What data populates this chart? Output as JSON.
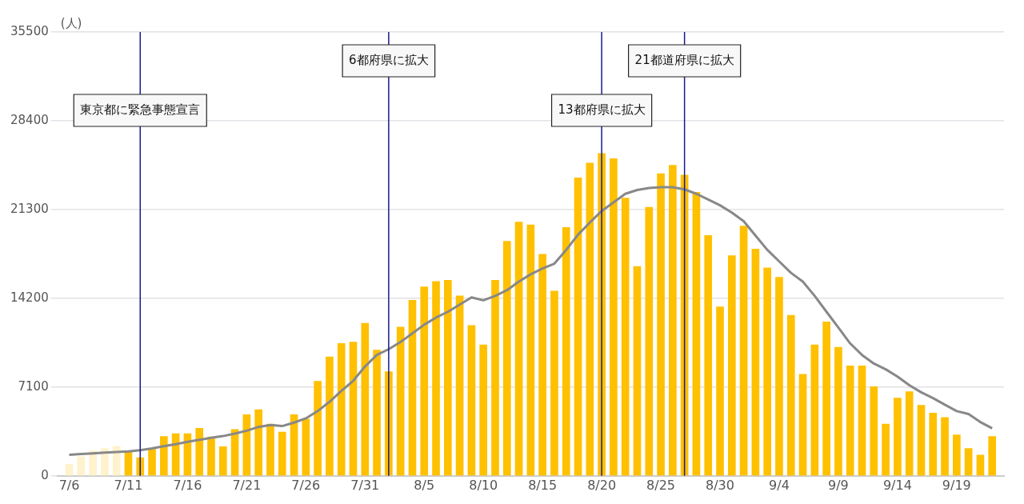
{
  "chart_data": {
    "type": "bar",
    "ylabel": "(人)",
    "x": [
      "--07-06",
      "--07-07",
      "--07-08",
      "--07-09",
      "--07-10",
      "--07-11",
      "--07-12",
      "--07-13",
      "--07-14",
      "--07-15",
      "--07-16",
      "--07-17",
      "--07-18",
      "--07-19",
      "--07-20",
      "--07-21",
      "--07-22",
      "--07-23",
      "--07-24",
      "--07-25",
      "--07-26",
      "--07-27",
      "--07-28",
      "--07-29",
      "--07-30",
      "--07-31",
      "--08-01",
      "--08-02",
      "--08-03",
      "--08-04",
      "--08-05",
      "--08-06",
      "--08-07",
      "--08-08",
      "--08-09",
      "--08-10",
      "--08-11",
      "--08-12",
      "--08-13",
      "--08-14",
      "--08-15",
      "--08-16",
      "--08-17",
      "--08-18",
      "--08-19",
      "--08-20",
      "--08-21",
      "--08-22",
      "--08-23",
      "--08-24",
      "--08-25",
      "--08-26",
      "--08-27",
      "--08-28",
      "--08-29",
      "--08-30",
      "--08-31",
      "--09-01",
      "--09-02",
      "--09-03",
      "--09-04",
      "--09-05",
      "--09-06",
      "--09-07",
      "--09-08",
      "--09-09",
      "--09-10",
      "--09-11",
      "--09-12",
      "--09-13",
      "--09-14",
      "--09-15",
      "--09-16",
      "--09-17",
      "--09-18",
      "--09-19",
      "--09-20",
      "--09-21",
      "--09-22"
    ],
    "series": [
      {
        "colors": [
          "#fff2cc",
          "#fff2cc",
          "#fff2cc",
          "#fff2cc",
          "#fff2cc",
          "#ffc000",
          "#ffc000",
          "#ffc000",
          "#ffc000",
          "#ffc000",
          "#ffc000",
          "#ffc000",
          "#ffc000",
          "#ffc000",
          "#ffc000",
          "#ffc000",
          "#ffc000",
          "#ffc000",
          "#ffc000",
          "#ffc000",
          "#ffc000",
          "#ffc000",
          "#ffc000",
          "#ffc000",
          "#ffc000",
          "#ffc000",
          "#ffc000",
          "#ffc000",
          "#ffc000",
          "#ffc000",
          "#ffc000",
          "#ffc000",
          "#ffc000",
          "#ffc000",
          "#ffc000",
          "#ffc000",
          "#ffc000",
          "#ffc000",
          "#ffc000",
          "#ffc000",
          "#ffc000",
          "#ffc000",
          "#ffc000",
          "#ffc000",
          "#ffc000",
          "#ffc000",
          "#ffc000",
          "#ffc000",
          "#ffc000",
          "#ffc000",
          "#ffc000",
          "#ffc000",
          "#ffc000",
          "#ffc000",
          "#ffc000",
          "#ffc000",
          "#ffc000",
          "#ffc000",
          "#ffc000",
          "#ffc000",
          "#ffc000",
          "#ffc000",
          "#ffc000",
          "#ffc000",
          "#ffc000",
          "#ffc000",
          "#ffc000",
          "#ffc000",
          "#ffc000",
          "#ffc000",
          "#ffc000",
          "#ffc000",
          "#ffc000",
          "#ffc000",
          "#ffc000",
          "#ffc000",
          "#ffc000",
          "#ffc000",
          "#ffc000"
        ],
        "values": [
          920,
          1540,
          2000,
          2190,
          2370,
          1960,
          1450,
          2120,
          3150,
          3380,
          3380,
          3800,
          3110,
          2330,
          3710,
          4900,
          5300,
          4140,
          3500,
          4900,
          4540,
          7570,
          9510,
          10590,
          10700,
          12200,
          10060,
          8330,
          11900,
          14040,
          15120,
          15540,
          15650,
          14390,
          12020,
          10470,
          15650,
          18760,
          20300,
          20070,
          17720,
          14780,
          19870,
          23830,
          25020,
          25780,
          25370,
          22210,
          16740,
          21480,
          24170,
          24840,
          24060,
          22680,
          19220,
          13510,
          17610,
          19980,
          18140,
          16640,
          15880,
          12850,
          8130,
          10470,
          12320,
          10290,
          8790,
          8790,
          7140,
          4140,
          6220,
          6740,
          5640,
          5020,
          4670,
          3270,
          2190,
          1660,
          3150
        ]
      },
      {
        "type": "line",
        "color": "#888888",
        "values": [
          1680,
          1740,
          1800,
          1860,
          1910,
          1960,
          2050,
          2190,
          2370,
          2530,
          2720,
          2880,
          3040,
          3180,
          3380,
          3610,
          3910,
          4070,
          3980,
          4260,
          4600,
          5180,
          5920,
          6790,
          7600,
          8750,
          9670,
          10130,
          10700,
          11390,
          12090,
          12660,
          13120,
          13700,
          14270,
          14040,
          14390,
          14850,
          15540,
          16120,
          16580,
          16970,
          18070,
          19290,
          20260,
          21180,
          21870,
          22560,
          22860,
          23020,
          23090,
          23090,
          22910,
          22560,
          22100,
          21640,
          21060,
          20370,
          19220,
          18070,
          17150,
          16230,
          15540,
          14390,
          13120,
          11860,
          10590,
          9670,
          8980,
          8520,
          7940,
          7250,
          6680,
          6220,
          5690,
          5180,
          4950,
          4300,
          3800
        ]
      }
    ],
    "xlim": [
      "--07-05",
      "--09-23"
    ],
    "xticks": [
      {
        "value": "--07-06",
        "label": "7/6"
      },
      {
        "value": "--07-11",
        "label": "7/11"
      },
      {
        "value": "--07-16",
        "label": "7/16"
      },
      {
        "value": "--07-21",
        "label": "7/21"
      },
      {
        "value": "--07-26",
        "label": "7/26"
      },
      {
        "value": "--07-31",
        "label": "7/31"
      },
      {
        "value": "--08-05",
        "label": "8/5"
      },
      {
        "value": "--08-10",
        "label": "8/10"
      },
      {
        "value": "--08-15",
        "label": "8/15"
      },
      {
        "value": "--08-20",
        "label": "8/20"
      },
      {
        "value": "--08-25",
        "label": "8/25"
      },
      {
        "value": "--08-30",
        "label": "8/30"
      },
      {
        "value": "--09-04",
        "label": "9/4"
      },
      {
        "value": "--09-09",
        "label": "9/9"
      },
      {
        "value": "--09-14",
        "label": "9/14"
      },
      {
        "value": "--09-19",
        "label": "9/19"
      }
    ],
    "ylim": [
      0,
      35500
    ],
    "yticks": [
      0,
      7100,
      14200,
      21300,
      28400,
      35500
    ],
    "ref_lines": [
      {
        "axis": "x",
        "value": "--07-12",
        "label": "東京都に緊急事態宣言",
        "color": "#1a1a8c"
      },
      {
        "axis": "x",
        "value": "--08-02",
        "label": "6都府県に拡大",
        "color": "#1a1a8c"
      },
      {
        "axis": "x",
        "value": "--08-20",
        "label": "13都府県に拡大",
        "color": "#1a1a8c"
      },
      {
        "axis": "x",
        "value": "--08-27",
        "label": "21都道府県に拡大",
        "color": "#1a1a8c"
      }
    ],
    "grid": "y",
    "legend": false
  }
}
